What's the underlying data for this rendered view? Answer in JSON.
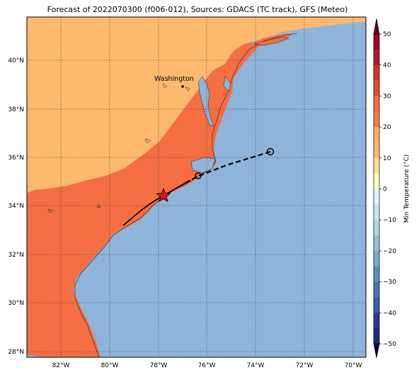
{
  "title": "Forecast of 2022070300 (f006-012), Sources: GDACS (TC track), GFS (Meteo)",
  "map": {
    "lon_ticks": [
      "82°W",
      "80°W",
      "78°W",
      "76°W",
      "74°W",
      "72°W",
      "70°W"
    ],
    "lat_ticks": [
      "40°N",
      "38°N",
      "36°N",
      "34°N",
      "32°N",
      "30°N",
      "28°N"
    ],
    "city_label": "Washington",
    "colors": {
      "ocean": "#8fb4d9",
      "warm": "#f46d43",
      "mild": "#fdb96e",
      "track": "#000000",
      "storm": "#d7191c"
    }
  },
  "colorbar": {
    "label": "Min Temperature (°C)",
    "ticks": [
      "50",
      "40",
      "30",
      "20",
      "10",
      "0",
      "−10",
      "−20",
      "−30",
      "−40",
      "−50"
    ],
    "colors": [
      "#a50026",
      "#d73027",
      "#f46d43",
      "#fdae61",
      "#fee090",
      "#ffffbf",
      "#e0f3f8",
      "#abd9e9",
      "#74add1",
      "#4575b4",
      "#313695"
    ]
  }
}
